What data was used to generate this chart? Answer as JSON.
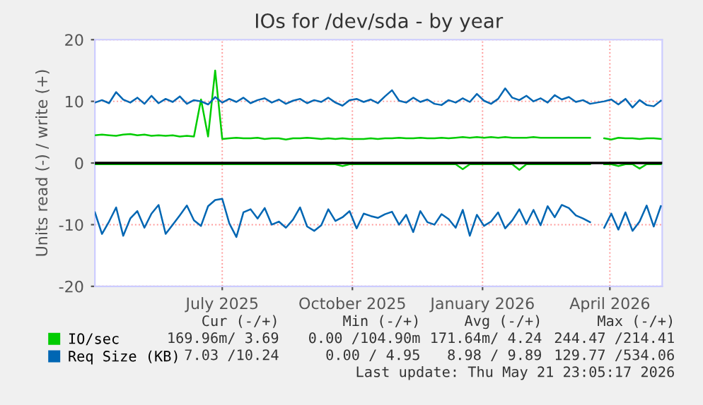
{
  "chart_data": {
    "type": "line",
    "title": "IOs for /dev/sda - by year",
    "ylabel": "Units read (-) / write (+)",
    "x": [
      "2025-04-16",
      "2025-04-21",
      "2025-04-26",
      "2025-05-01",
      "2025-05-06",
      "2025-05-11",
      "2025-05-16",
      "2025-05-21",
      "2025-05-26",
      "2025-05-31",
      "2025-06-05",
      "2025-06-10",
      "2025-06-15",
      "2025-06-20",
      "2025-06-25",
      "2025-06-30",
      "2025-07-05",
      "2025-07-10",
      "2025-07-15",
      "2025-07-20",
      "2025-07-25",
      "2025-07-30",
      "2025-08-04",
      "2025-08-09",
      "2025-08-14",
      "2025-08-19",
      "2025-08-24",
      "2025-08-29",
      "2025-09-03",
      "2025-09-08",
      "2025-09-13",
      "2025-09-18",
      "2025-09-23",
      "2025-09-28",
      "2025-10-03",
      "2025-10-08",
      "2025-10-13",
      "2025-10-18",
      "2025-10-23",
      "2025-10-28",
      "2025-11-02",
      "2025-11-07",
      "2025-11-12",
      "2025-11-17",
      "2025-11-22",
      "2025-11-27",
      "2025-12-02",
      "2025-12-07",
      "2025-12-12",
      "2025-12-17",
      "2025-12-22",
      "2025-12-27",
      "2026-01-01",
      "2026-01-06",
      "2026-01-11",
      "2026-01-16",
      "2026-01-21",
      "2026-01-26",
      "2026-01-31",
      "2026-02-05",
      "2026-02-10",
      "2026-02-15",
      "2026-02-20",
      "2026-02-25",
      "2026-03-02",
      "2026-03-07",
      "2026-03-12",
      "2026-03-17",
      "2026-03-22",
      "2026-03-27",
      "2026-04-01",
      "2026-04-06",
      "2026-04-11",
      "2026-04-16",
      "2026-04-21",
      "2026-04-26",
      "2026-05-01",
      "2026-05-06",
      "2026-05-11",
      "2026-05-16",
      "2026-05-21"
    ],
    "series": [
      {
        "name": "IO/sec",
        "color": "#00cc00",
        "values": [
          4.5,
          4.6,
          4.5,
          4.4,
          4.6,
          4.7,
          4.5,
          4.6,
          4.4,
          4.5,
          4.4,
          4.5,
          4.3,
          4.4,
          4.3,
          10.3,
          4.3,
          15.0,
          3.9,
          4.0,
          4.1,
          4.0,
          4.0,
          4.1,
          3.9,
          4.0,
          4.0,
          3.8,
          4.0,
          4.0,
          4.1,
          4.0,
          3.9,
          4.0,
          3.9,
          4.0,
          3.9,
          3.9,
          3.9,
          4.0,
          3.9,
          4.0,
          4.0,
          4.1,
          4.0,
          4.0,
          4.1,
          4.0,
          4.0,
          4.1,
          4.0,
          4.1,
          4.2,
          4.1,
          4.2,
          4.1,
          4.2,
          4.1,
          4.2,
          4.1,
          4.1,
          4.1,
          4.2,
          4.1,
          4.1,
          4.1,
          4.1,
          4.1,
          4.1,
          4.1,
          4.1,
          null,
          4.0,
          3.8,
          4.1,
          4.0,
          4.0,
          3.9,
          4.0,
          4.0,
          3.9
        ]
      },
      {
        "color": "#00cc00",
        "values": [
          -0.2,
          -0.2,
          -0.2,
          -0.2,
          -0.2,
          -0.2,
          -0.2,
          -0.2,
          -0.2,
          -0.2,
          -0.2,
          -0.2,
          -0.2,
          -0.2,
          -0.2,
          -0.2,
          -0.2,
          -0.2,
          -0.2,
          -0.2,
          -0.2,
          -0.2,
          -0.2,
          -0.2,
          -0.2,
          -0.2,
          -0.2,
          -0.2,
          -0.2,
          -0.2,
          -0.2,
          -0.2,
          -0.2,
          -0.2,
          -0.2,
          -0.5,
          -0.2,
          -0.2,
          -0.2,
          -0.2,
          -0.2,
          -0.2,
          -0.2,
          -0.2,
          -0.2,
          -0.2,
          -0.2,
          -0.2,
          -0.2,
          -0.2,
          -0.2,
          -0.2,
          -1.0,
          -0.2,
          -0.2,
          -0.2,
          -0.2,
          -0.2,
          -0.2,
          -0.2,
          -1.1,
          -0.2,
          -0.2,
          -0.2,
          -0.2,
          -0.2,
          -0.2,
          -0.2,
          -0.2,
          -0.2,
          -0.2,
          null,
          -0.2,
          -0.2,
          -0.5,
          -0.2,
          -0.2,
          -0.9,
          -0.2,
          -0.2,
          -0.2
        ]
      },
      {
        "name": "Req Size (KB)",
        "color": "#0066b3",
        "values": [
          9.8,
          10.2,
          9.7,
          11.5,
          10.3,
          9.8,
          10.6,
          9.6,
          10.9,
          9.7,
          10.4,
          9.9,
          10.8,
          9.6,
          10.2,
          10.0,
          9.5,
          10.7,
          9.8,
          10.4,
          9.9,
          10.6,
          9.7,
          10.2,
          10.5,
          9.8,
          10.3,
          9.6,
          10.1,
          10.4,
          9.7,
          10.2,
          9.9,
          10.6,
          9.8,
          9.3,
          10.2,
          10.4,
          9.9,
          10.3,
          9.7,
          10.8,
          11.8,
          10.1,
          9.8,
          10.6,
          9.9,
          10.3,
          9.6,
          9.4,
          10.2,
          9.8,
          10.5,
          9.9,
          11.2,
          10.1,
          9.6,
          10.4,
          12.1,
          10.6,
          10.2,
          10.9,
          10.0,
          10.5,
          9.8,
          11.0,
          10.3,
          10.7,
          9.9,
          10.2,
          9.6,
          9.8,
          10.0,
          10.3,
          9.5,
          10.4,
          9.0,
          10.2,
          9.4,
          9.2,
          10.1
        ]
      },
      {
        "color": "#0066b3",
        "values": [
          -8.0,
          -11.5,
          -9.5,
          -7.2,
          -11.8,
          -9.0,
          -7.8,
          -10.5,
          -8.2,
          -6.8,
          -11.5,
          -10.0,
          -8.5,
          -6.9,
          -9.3,
          -10.2,
          -7.0,
          -6.0,
          -5.8,
          -9.8,
          -12.0,
          -8.0,
          -7.5,
          -9.0,
          -7.3,
          -10.0,
          -9.5,
          -10.5,
          -9.2,
          -7.2,
          -10.3,
          -11.0,
          -10.1,
          -7.5,
          -9.4,
          -8.8,
          -7.8,
          -10.6,
          -8.2,
          -8.6,
          -8.9,
          -8.3,
          -7.9,
          -10.0,
          -8.4,
          -11.2,
          -7.8,
          -9.6,
          -10.0,
          -8.3,
          -9.1,
          -10.5,
          -7.6,
          -11.8,
          -8.4,
          -10.2,
          -9.5,
          -8.0,
          -10.6,
          -9.3,
          -7.5,
          -9.9,
          -7.6,
          -10.1,
          -7.0,
          -8.8,
          -6.8,
          -7.3,
          -8.5,
          -9.0,
          -9.6,
          null,
          -10.5,
          -8.2,
          -10.8,
          -8.0,
          -11.0,
          -9.5,
          -6.9,
          -10.3,
          -7.0
        ]
      }
    ],
    "xlim": [
      "2025-04-16",
      "2026-05-22"
    ],
    "xticks": [
      {
        "value": "2025-07-15",
        "label": "July 2025"
      },
      {
        "value": "2025-10-15",
        "label": "October 2025"
      },
      {
        "value": "2026-01-15",
        "label": "January 2026"
      },
      {
        "value": "2026-04-15",
        "label": "April 2026"
      }
    ],
    "ylim": [
      -20,
      20
    ],
    "yticks": [
      -20,
      -10,
      0,
      10,
      20
    ],
    "ref_lines": [
      {
        "axis": "y",
        "value": 0,
        "color": "#000000"
      }
    ],
    "grid": true,
    "legend": "bottom left",
    "marker": "none",
    "line_style": "solid",
    "annotations": [
      "Cur (-/+)",
      "Min (-/+)",
      "Avg (-/+)",
      "Max (-/+)",
      "169.96m/ 3.69",
      "0.00 /104.90m",
      "171.64m/ 4.24",
      "244.47 /214.41",
      "7.03 /10.24",
      "0.00 / 4.95",
      "8.98 / 9.89",
      "129.77 /534.06",
      "Last update: Thu May 21 23:05:17 2026"
    ]
  }
}
